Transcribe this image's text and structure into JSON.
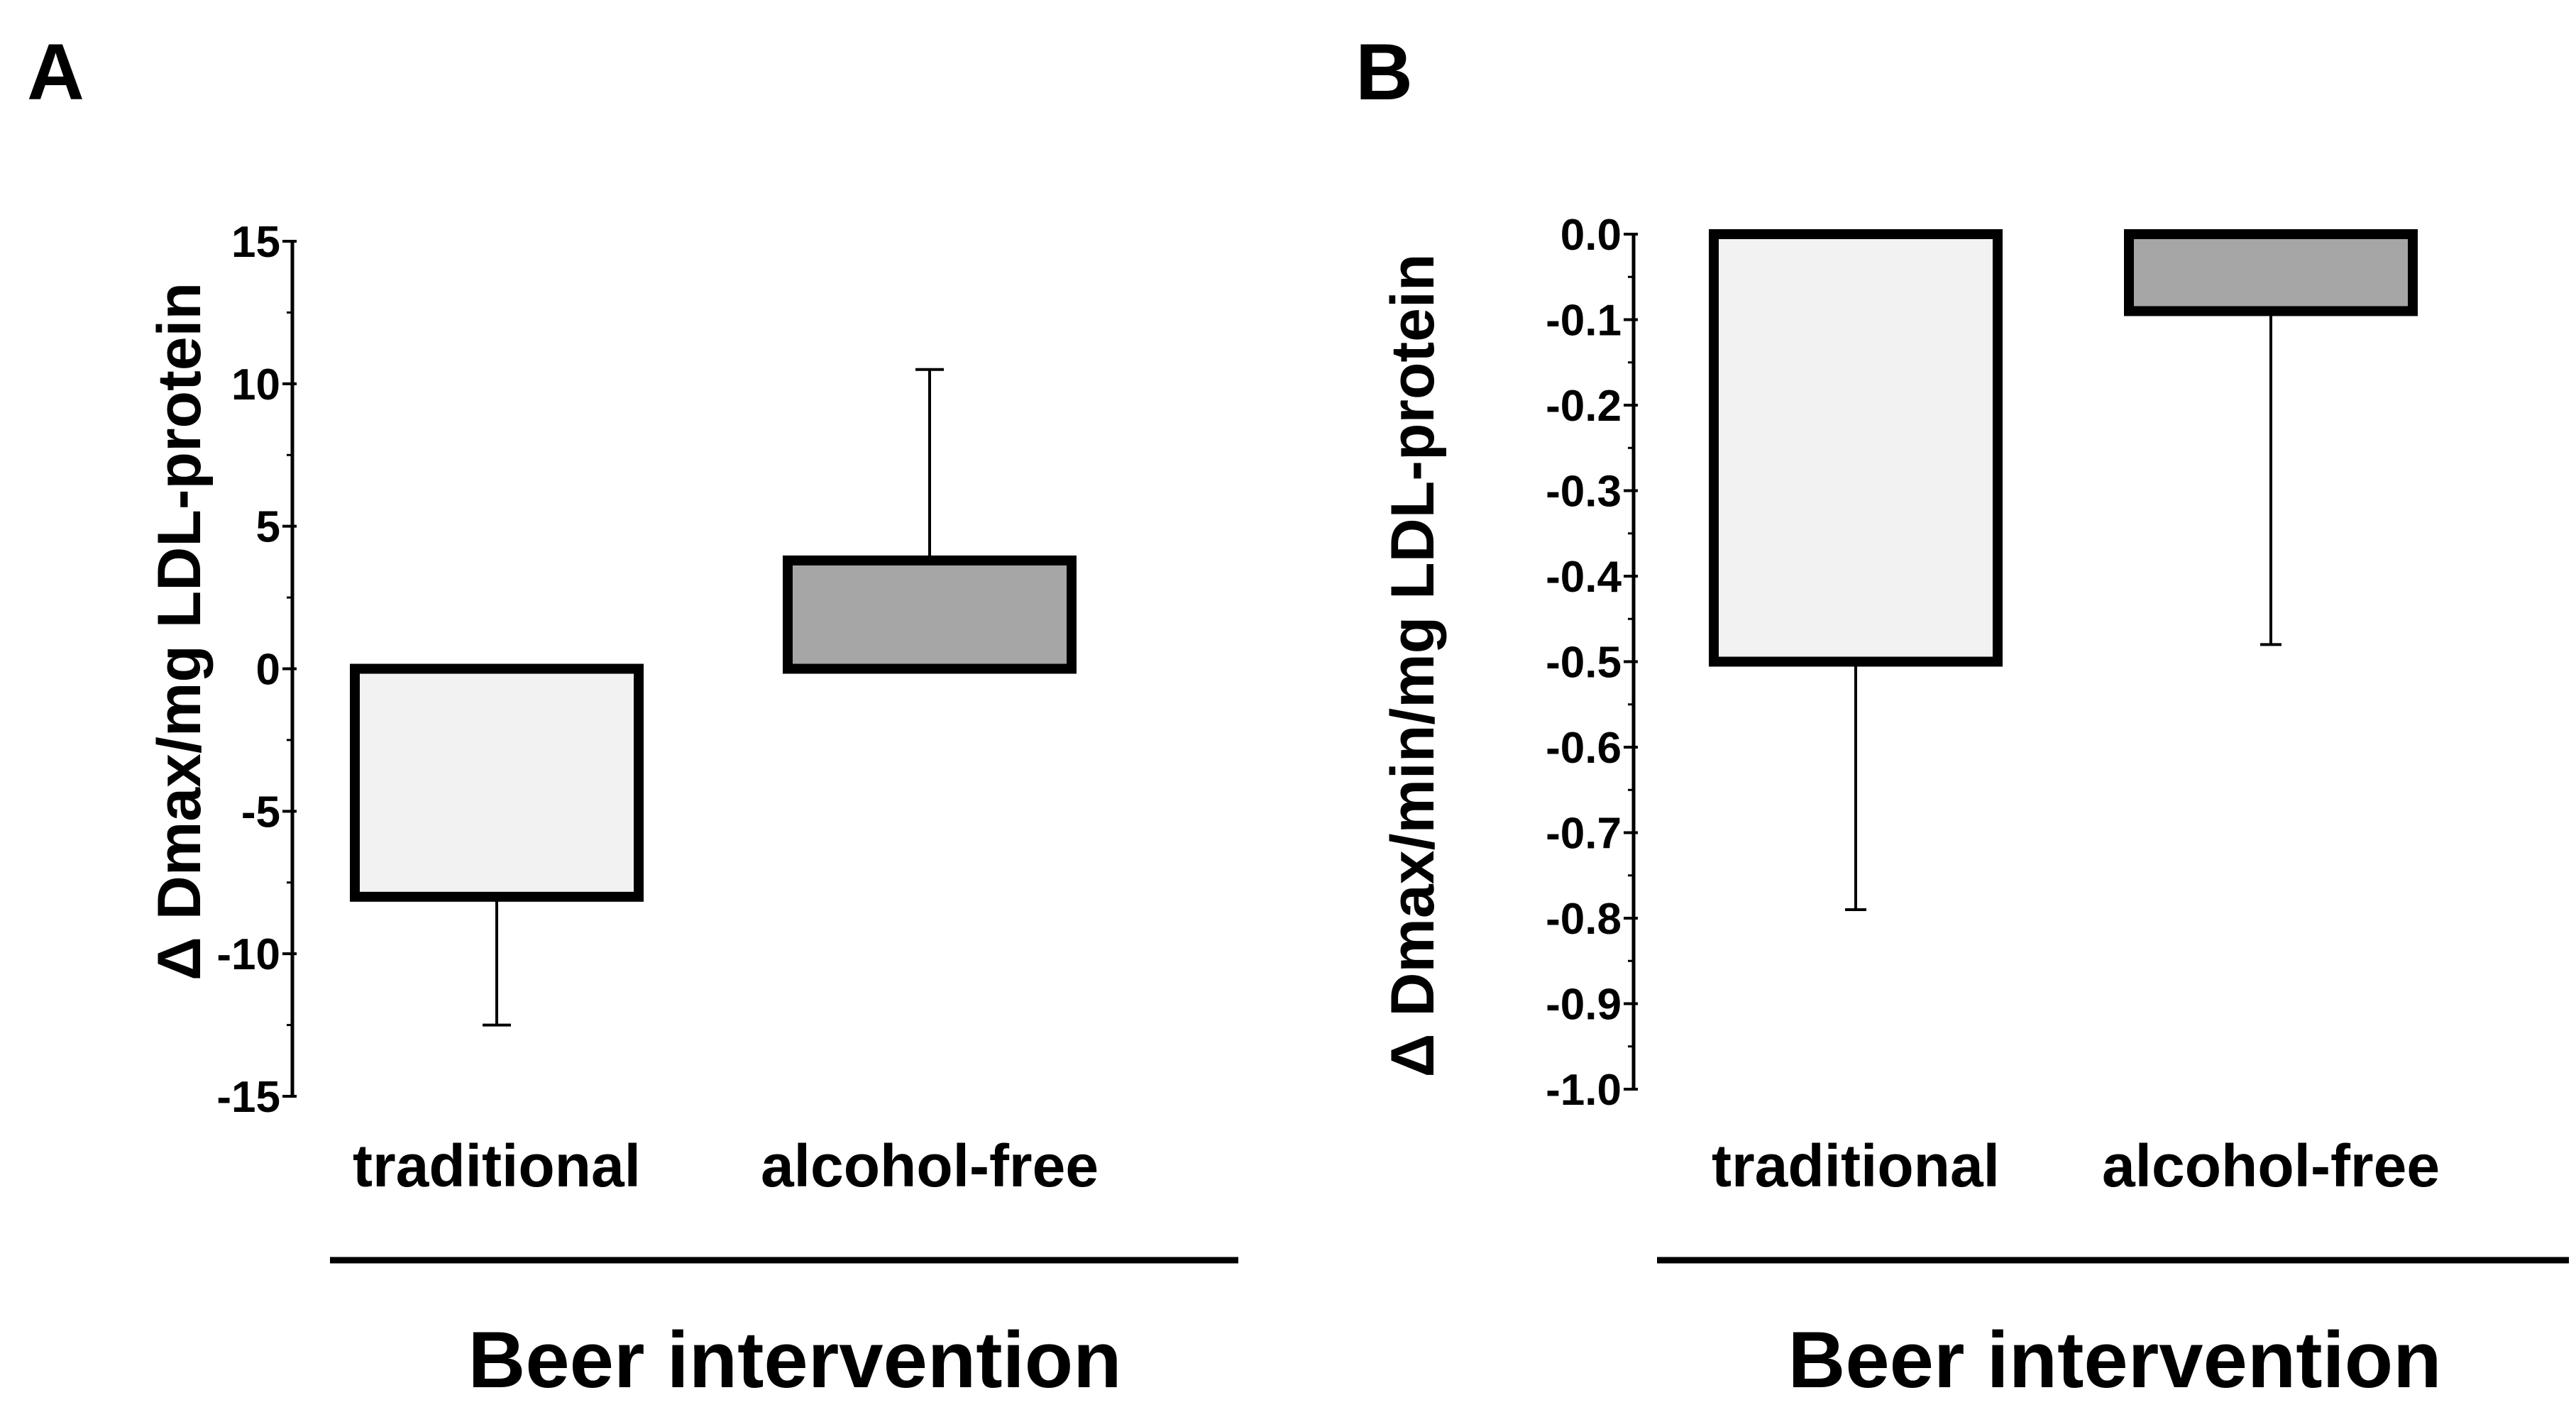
{
  "chart_data": [
    {
      "type": "bar",
      "panel_label": "A",
      "categories": [
        "traditional",
        "alcohol-free"
      ],
      "values": [
        -8.0,
        3.8
      ],
      "error_bars": [
        -12.5,
        10.5
      ],
      "bar_colors": [
        "#f2f2f2",
        "#a6a6a6"
      ],
      "ylabel": "Δ Dmax/mg LDL-protein",
      "xlabel": "Beer intervention",
      "ylim": [
        -15,
        15
      ],
      "yticks": [
        15,
        10,
        5,
        0,
        -5,
        -10,
        -15
      ],
      "ytick_labels": [
        "15",
        "10",
        "5",
        "0",
        "-5",
        "-10",
        "-15"
      ]
    },
    {
      "type": "bar",
      "panel_label": "B",
      "categories": [
        "traditional",
        "alcohol-free"
      ],
      "values": [
        -0.5,
        -0.09
      ],
      "error_bars": [
        -0.79,
        -0.48
      ],
      "bar_colors": [
        "#f2f2f2",
        "#a6a6a6"
      ],
      "ylabel": "Δ Dmax/min/mg LDL-protein",
      "xlabel": "Beer intervention",
      "ylim": [
        -1.0,
        0.0
      ],
      "yticks": [
        0.0,
        -0.1,
        -0.2,
        -0.3,
        -0.4,
        -0.5,
        -0.6,
        -0.7,
        -0.8,
        -0.9,
        -1.0
      ],
      "ytick_labels": [
        "0.0",
        "-0.1",
        "-0.2",
        "-0.3",
        "-0.4",
        "-0.5",
        "-0.6",
        "-0.7",
        "-0.8",
        "-0.9",
        "-1.0"
      ]
    }
  ]
}
